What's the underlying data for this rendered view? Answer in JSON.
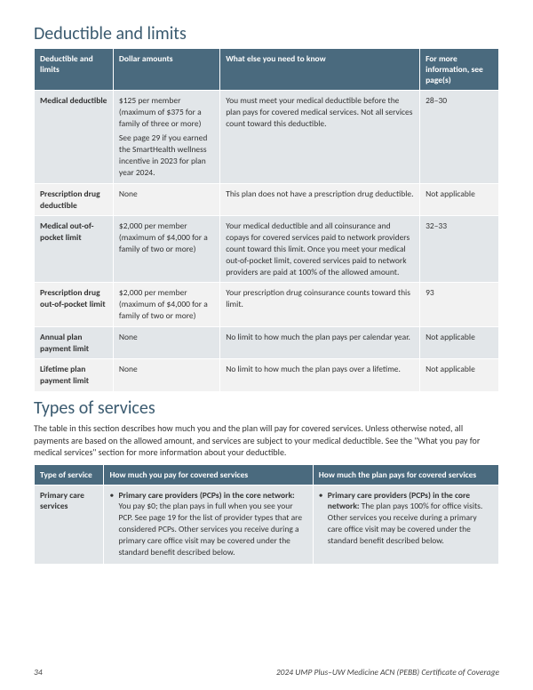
{
  "section1": {
    "title": "Deductible and limits",
    "headers": [
      "Deductible and limits",
      "Dollar amounts",
      "What else you need to know",
      "For more information, see page(s)"
    ],
    "rows": [
      {
        "shade": true,
        "label": "Medical deductible",
        "amount_main": "$125 per member (maximum of $375 for a family of three or more)",
        "amount_note": "See page 29 if you earned the SmartHealth wellness incentive in 2023 for plan year 2024.",
        "info": "You must meet your medical deductible before the plan pays for covered medical services. Not all services count toward this deductible.",
        "page": "28–30"
      },
      {
        "shade": false,
        "label": "Prescription drug deductible",
        "amount_main": "None",
        "amount_note": "",
        "info": "This plan does not have a prescription drug deductible.",
        "page": "Not applicable"
      },
      {
        "shade": true,
        "label": "Medical out-of-pocket limit",
        "amount_main": " $2,000 per member (maximum of $4,000 for a family of two or more)",
        "amount_note": "",
        "info": "Your medical deductible and all coinsurance and copays for covered services paid to network providers count toward this limit. Once you meet your medical out-of-pocket limit, covered services paid to network providers are paid at 100% of the allowed amount.",
        "page": "32–33"
      },
      {
        "shade": false,
        "label": "Prescription drug out-of-pocket limit",
        "amount_main": "$2,000 per member (maximum of $4,000 for a family of two or more)",
        "amount_note": "",
        "info": "Your prescription drug coinsurance counts toward this limit.",
        "page": "93"
      },
      {
        "shade": true,
        "label": "Annual plan payment limit",
        "amount_main": "None",
        "amount_note": "",
        "info": "No limit to how much the plan pays per calendar year.",
        "page": "Not applicable"
      },
      {
        "shade": false,
        "label": "Lifetime plan payment limit",
        "amount_main": "None",
        "amount_note": "",
        "info": "No limit to how much the plan pays over a lifetime.",
        "page": "Not applicable"
      }
    ]
  },
  "section2": {
    "title": "Types of services",
    "intro": "The table in this section describes how much you and the plan will pay for covered services. Unless otherwise noted, all payments are based on the allowed amount, and services are subject to your medical deductible. See the \"What you pay for medical services\" section for more information about your deductible.",
    "headers": [
      "Type of service",
      "How much you pay for covered services",
      "How much the plan pays for covered services"
    ],
    "row": {
      "label": "Primary care services",
      "you_bold": "Primary care providers (PCPs) in the core network:",
      "you_text": " You pay $0; the plan pays in full when you see your PCP. See page 19 for the list of provider types that are considered PCPs. Other services you receive during a primary care office visit may be covered under the standard benefit described below.",
      "plan_bold": "Primary care providers (PCPs) in the core network:",
      "plan_text": " The plan pays 100% for office visits. Other services you receive during a primary care office visit may be covered under the standard benefit described below."
    }
  },
  "footer": {
    "page": "34",
    "doc": "2024 UMP Plus–UW Medicine ACN (PEBB) Certificate of Coverage"
  }
}
